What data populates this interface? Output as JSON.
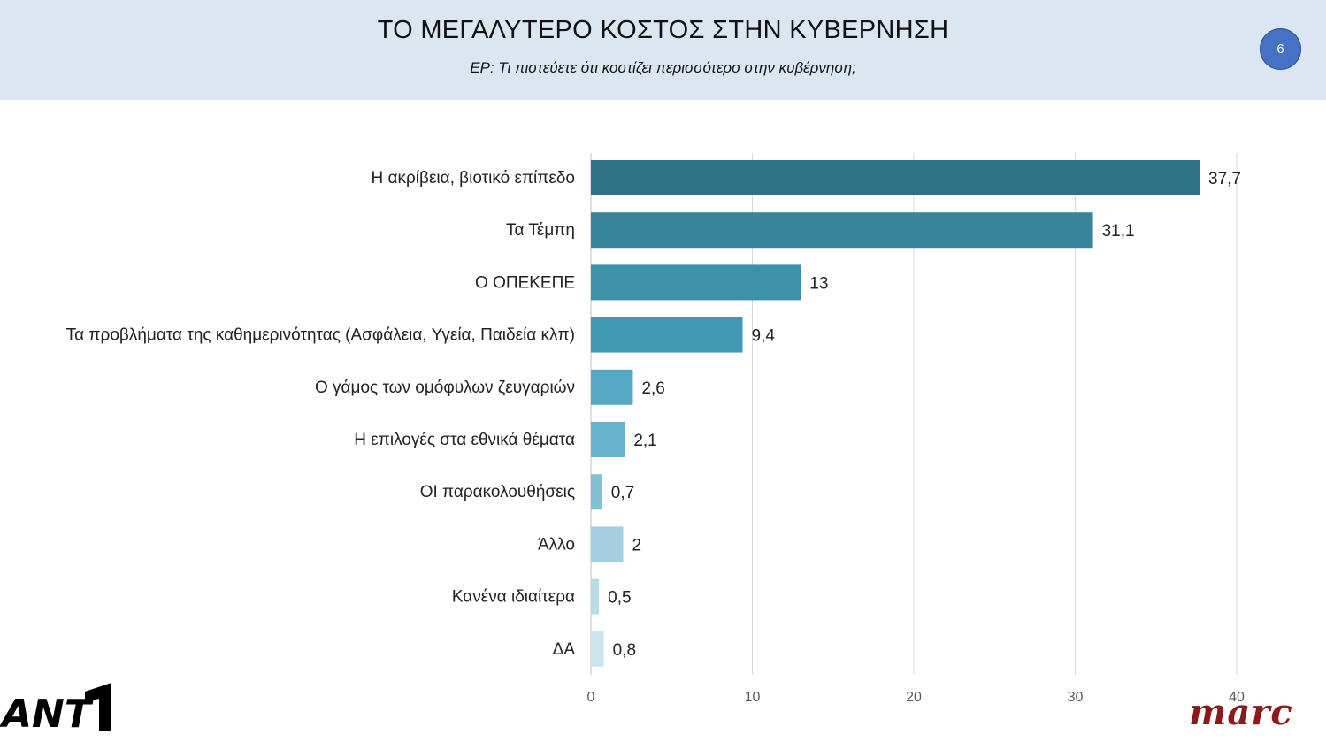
{
  "header": {
    "title": "ΤΟ ΜΕΓΑΛΥΤΕΡΟ ΚΟΣΤΟΣ ΣΤΗΝ ΚΥΒΕΡΝΗΣΗ",
    "subtitle": "ΕΡ: Τι πιστεύετε ότι κοστίζει  περισσότερο στην κυβέρνηση;",
    "page_number": "6"
  },
  "logos": {
    "left": "ANT1",
    "right": "marc"
  },
  "chart_data": {
    "type": "bar",
    "orientation": "horizontal",
    "categories": [
      "Η ακρίβεια, βιοτικό επίπεδο",
      "Τα Τέμπη",
      "Ο ΟΠΕΚΕΠΕ",
      "Τα προβλήματα της καθημερινότητας (Ασφάλεια, Υγεία, Παιδεία κλπ)",
      "Ο γάμος των ομόφυλων ζευγαριών",
      "Η επιλογές στα εθνικά θέματα",
      "ΟΙ παρακολουθήσεις",
      "Άλλο",
      "Κανένα ιδιαίτερα",
      "ΔΑ"
    ],
    "values": [
      37.7,
      31.1,
      13,
      9.4,
      2.6,
      2.1,
      0.7,
      2,
      0.5,
      0.8
    ],
    "value_labels": [
      "37,7",
      "31,1",
      "13",
      "9,4",
      "2,6",
      "2,1",
      "0,7",
      "2",
      "0,5",
      "0,8"
    ],
    "bar_colors": [
      "#2e7285",
      "#36859a",
      "#3c91a8",
      "#4299b4",
      "#55a9c5",
      "#68b3cd",
      "#82c0d6",
      "#a4cfe0",
      "#bcdbe8",
      "#cde4ef"
    ],
    "xlim": [
      0,
      40
    ],
    "xticks": [
      0,
      10,
      20,
      30,
      40
    ],
    "grid": true,
    "legend": "none"
  }
}
